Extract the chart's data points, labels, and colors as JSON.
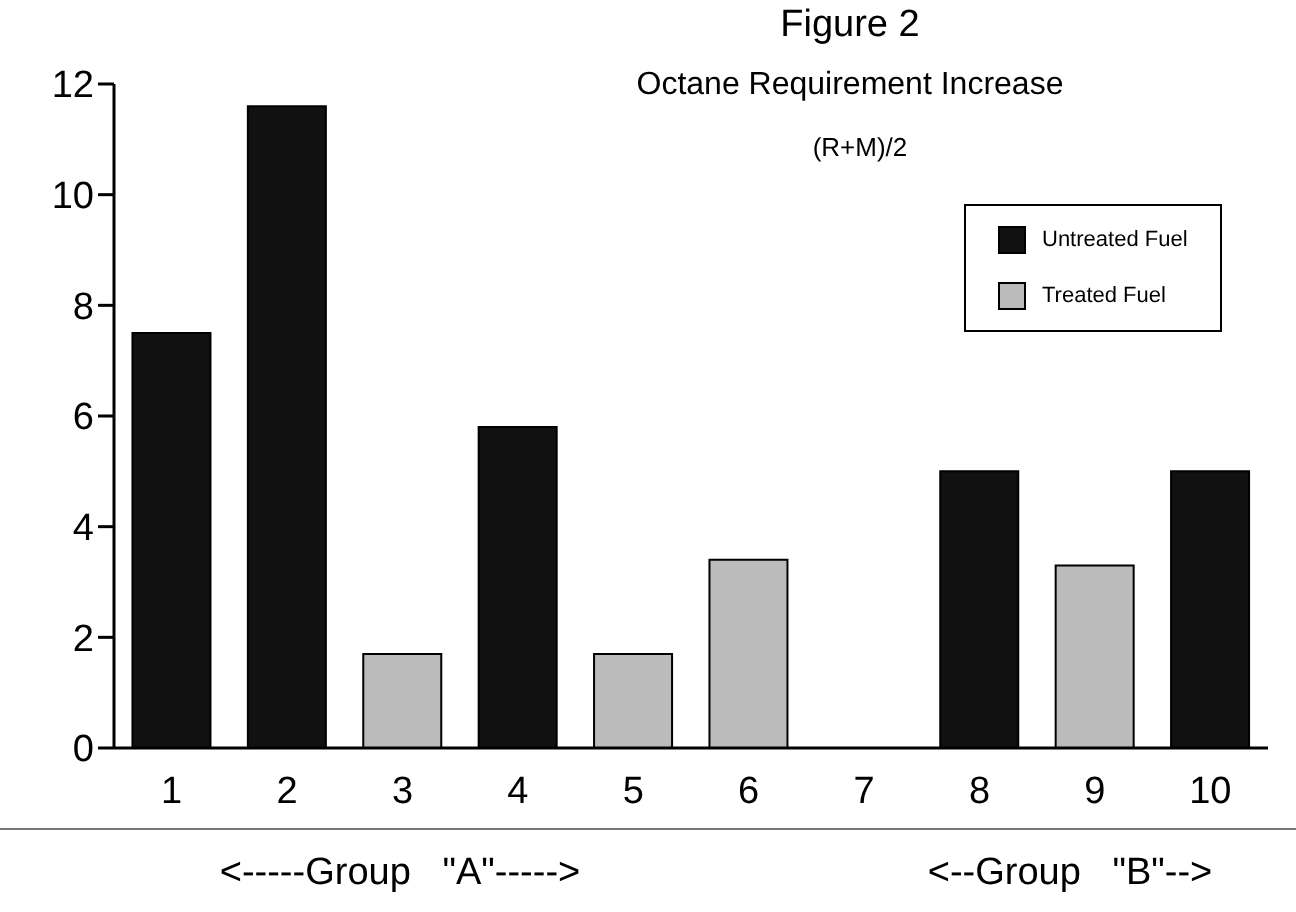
{
  "chart_data": {
    "type": "bar",
    "title": "Figure 2",
    "subtitle": "Octane Requirement Increase",
    "annotations": [
      "(R+M)/2",
      "<-----Group   \"A\"----->",
      "<--Group   \"B\"-->"
    ],
    "categories": [
      "1",
      "2",
      "3",
      "4",
      "5",
      "6",
      "7",
      "8",
      "9",
      "10"
    ],
    "stacked": true,
    "series": [
      {
        "name": "Untreated Fuel",
        "color": "#111111",
        "values": [
          7.5,
          11.6,
          null,
          5.8,
          null,
          null,
          null,
          5,
          null,
          5
        ]
      },
      {
        "name": "Treated Fuel",
        "color": "#bbbbbb",
        "values": [
          null,
          null,
          1.7,
          null,
          1.7,
          3.4,
          null,
          null,
          3.3,
          null
        ]
      }
    ],
    "ylim": [
      0,
      12
    ],
    "yticks": [
      0,
      2,
      4,
      6,
      8,
      10,
      12
    ],
    "grid": false,
    "legend": "top right"
  }
}
